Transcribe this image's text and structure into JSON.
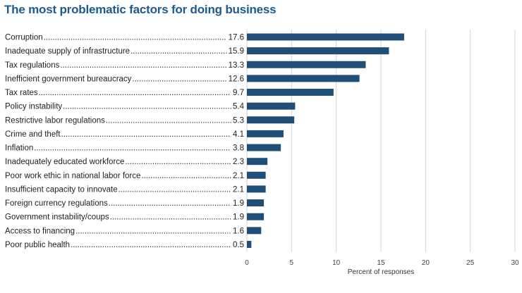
{
  "colors": {
    "bar": "#1f4e79",
    "title": "#1d5a8f",
    "grid": "#d3d3d3",
    "text": "#222222"
  },
  "chart_data": {
    "type": "bar",
    "orientation": "horizontal",
    "title": "The most problematic factors for doing business",
    "xlabel": "Percent of responses",
    "ylabel": "",
    "xlim": [
      0,
      30
    ],
    "xticks": [
      0,
      5,
      10,
      15,
      20,
      25,
      30
    ],
    "grid": true,
    "categories": [
      "Corruption",
      "Inadequate supply of infrastructure",
      "Tax regulations",
      "Inefficient government bureaucracy",
      "Tax rates",
      "Policy instability",
      "Restrictive labor regulations",
      "Crime and theft",
      "Inflation",
      "Inadequately educated workforce",
      "Poor work ethic in national labor force",
      "Insufficient capacity to innovate",
      "Foreign currency regulations",
      "Government instability/coups",
      "Access to financing",
      "Poor public health"
    ],
    "values": [
      17.6,
      15.9,
      13.3,
      12.6,
      9.7,
      5.4,
      5.3,
      4.1,
      3.8,
      2.3,
      2.1,
      2.1,
      1.9,
      1.9,
      1.6,
      0.5
    ],
    "value_labels": [
      "17.6",
      "15.9",
      "13.3",
      "12.6",
      "9.7",
      "5.4",
      "5.3",
      "4.1",
      "3.8",
      "2.3",
      "2.1",
      "2.1",
      "1.9",
      "1.9",
      "1.6",
      "0.5"
    ]
  }
}
